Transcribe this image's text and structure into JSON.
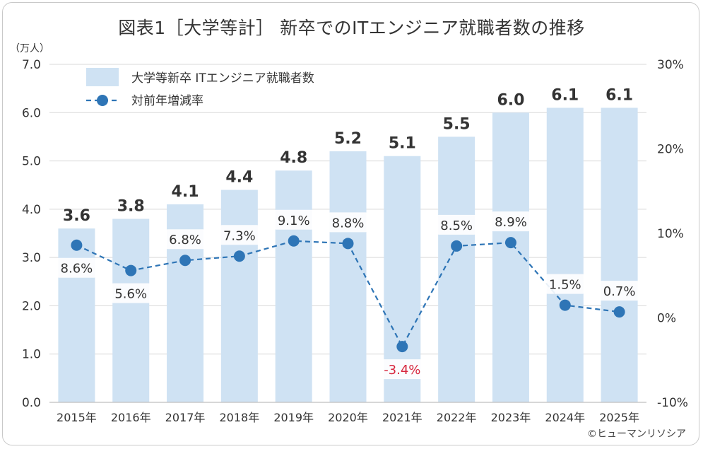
{
  "title": "図表1［大学等計］ 新卒でのITエンジニア就職者数の推移",
  "copyright": "©ヒューマンリソシア",
  "colors": {
    "bar": "#cfe2f3",
    "line": "#2e75b6",
    "text": "#333333",
    "negative": "#d7263d",
    "grid": "#d9d9d9"
  },
  "chart_data": {
    "type": "bar",
    "categories": [
      "2015年",
      "2016年",
      "2017年",
      "2018年",
      "2019年",
      "2020年",
      "2021年",
      "2022年",
      "2023年",
      "2024年",
      "2025年"
    ],
    "y_unit_label": "（万人）",
    "ylim": [
      0,
      7
    ],
    "y_ticks": [
      "0.0",
      "1.0",
      "2.0",
      "3.0",
      "4.0",
      "5.0",
      "6.0",
      "7.0"
    ],
    "y2lim": [
      -10,
      30
    ],
    "y2_ticks": [
      "-10%",
      "0%",
      "10%",
      "20%",
      "30%"
    ],
    "grid": true,
    "legend_position": "top-left",
    "series": [
      {
        "name": "大学等新卒 ITエンジニア就職者数",
        "kind": "bar",
        "axis": "left",
        "values": [
          3.6,
          3.8,
          4.1,
          4.4,
          4.8,
          5.2,
          5.1,
          5.5,
          6.0,
          6.1,
          6.1
        ],
        "labels": [
          "3.6",
          "3.8",
          "4.1",
          "4.4",
          "4.8",
          "5.2",
          "5.1",
          "5.5",
          "6.0",
          "6.1",
          "6.1"
        ]
      },
      {
        "name": "対前年増減率",
        "kind": "line",
        "axis": "right",
        "values": [
          8.6,
          5.6,
          6.8,
          7.3,
          9.1,
          8.8,
          -3.4,
          8.5,
          8.9,
          1.5,
          0.7
        ],
        "labels": [
          "8.6%",
          "5.6%",
          "6.8%",
          "7.3%",
          "9.1%",
          "8.8%",
          "-3.4%",
          "8.5%",
          "8.9%",
          "1.5%",
          "0.7%"
        ]
      }
    ]
  }
}
